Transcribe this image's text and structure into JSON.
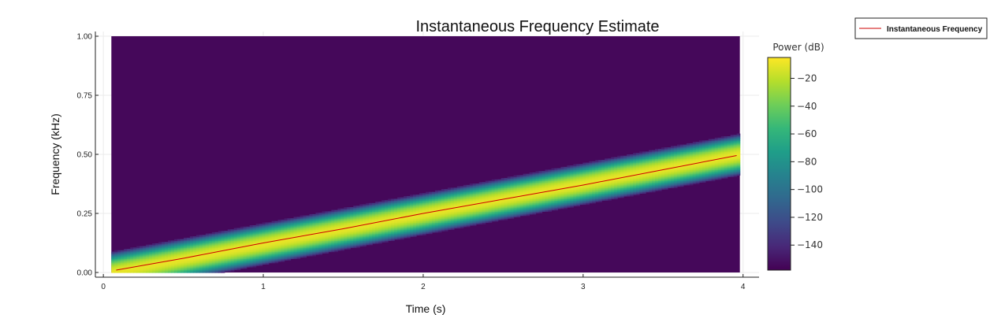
{
  "chart_data": {
    "type": "heatmap",
    "title": "Instantaneous Frequency Estimate",
    "xlabel": "Time (s)",
    "ylabel": "Frequency (kHz)",
    "xlim": [
      -0.05,
      4.1
    ],
    "ylim": [
      -0.02,
      1.02
    ],
    "xticks": [
      0,
      1,
      2,
      3,
      4
    ],
    "xtick_labels": [
      "0",
      "1",
      "2",
      "3",
      "4"
    ],
    "yticks": [
      0,
      0.25,
      0.5,
      0.75,
      1.0
    ],
    "ytick_labels": [
      "0.00",
      "0.25",
      "0.50",
      "0.75",
      "1.00"
    ],
    "grid": true,
    "spectrogram": {
      "time_range": [
        0.05,
        3.98
      ],
      "freq_range": [
        0,
        1.0
      ],
      "chirp_start": {
        "t": 0.05,
        "f": 0.0
      },
      "chirp_end": {
        "t": 3.98,
        "f": 0.5
      },
      "background_db": -155,
      "peak_db": -10
    },
    "series": [
      {
        "name": "Instantaneous Frequency",
        "color": "#cc0000",
        "x": [
          0.08,
          0.5,
          1.0,
          1.5,
          2.0,
          2.5,
          3.0,
          3.5,
          3.96
        ],
        "y": [
          0.01,
          0.06,
          0.125,
          0.185,
          0.25,
          0.31,
          0.37,
          0.435,
          0.495
        ]
      }
    ],
    "colorbar": {
      "label": "Power (dB)",
      "colormap": "viridis",
      "range": [
        -158,
        -5
      ],
      "ticks": [
        -20,
        -40,
        -60,
        -80,
        -100,
        -120,
        -140
      ],
      "tick_labels": [
        "−20",
        "−40",
        "−60",
        "−80",
        "−100",
        "−120",
        "−140"
      ]
    },
    "legend_position": "outside-top-right"
  }
}
